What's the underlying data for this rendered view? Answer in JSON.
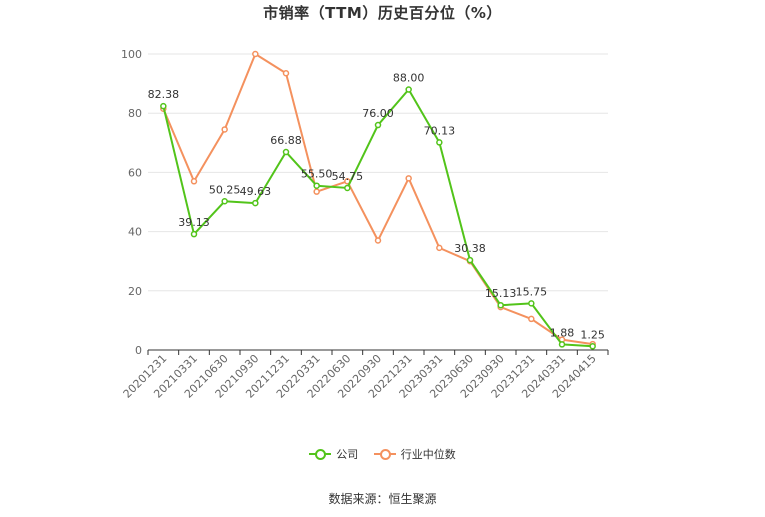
{
  "chart_data": {
    "type": "line",
    "title": "市销率（TTM）历史百分位（%）",
    "xlabel": "",
    "ylabel": "",
    "ylim": [
      0,
      100
    ],
    "yticks": [
      0,
      20,
      40,
      60,
      80,
      100
    ],
    "grid": true,
    "legend_position": "bottom",
    "categories": [
      "20201231",
      "20210331",
      "20210630",
      "20210930",
      "20211231",
      "20220331",
      "20220630",
      "20220930",
      "20221231",
      "20230331",
      "20230630",
      "20230930",
      "20231231",
      "20240331",
      "20240415"
    ],
    "series": [
      {
        "name": "公司",
        "color": "#52c41a",
        "values": [
          82.38,
          39.13,
          50.25,
          49.63,
          66.88,
          55.5,
          54.75,
          76.0,
          88.0,
          70.13,
          30.38,
          15.13,
          15.75,
          1.88,
          1.25
        ],
        "labels": [
          "82.38",
          "39.13",
          "50.25",
          "49.63",
          "66.88",
          "55.50",
          "54.75",
          "76.00",
          "88.00",
          "70.13",
          "30.38",
          "15.13",
          "15.75",
          "1.88",
          "1.25"
        ]
      },
      {
        "name": "行业中位数",
        "color": "#f4915e",
        "values": [
          81.5,
          57.0,
          74.5,
          100.0,
          93.5,
          53.5,
          57.0,
          37.0,
          58.0,
          34.5,
          30.0,
          14.5,
          10.5,
          3.5,
          2.0
        ]
      }
    ]
  },
  "source_text": "数据来源：恒生聚源"
}
